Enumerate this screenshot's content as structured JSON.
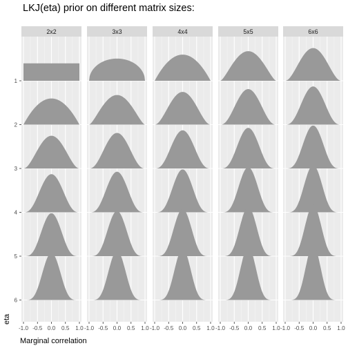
{
  "chart_data": {
    "type": "area",
    "title": "LKJ(eta) prior on different matrix sizes:",
    "xlabel": "Marginal correlation",
    "ylabel": "eta",
    "facet_columns": [
      "2x2",
      "3x3",
      "4x4",
      "5x5",
      "6x6"
    ],
    "eta_levels": [
      1,
      2,
      3,
      4,
      5,
      6
    ],
    "eta_tick_labels": [
      "1",
      "2",
      "3",
      "4",
      "5",
      "6"
    ],
    "x_ticks": [
      -1.0,
      -0.5,
      0.0,
      0.5,
      1.0
    ],
    "x_tick_labels": [
      "-1.0",
      "-0.5",
      "0.0",
      "0.5",
      "1.0"
    ],
    "xlim": [
      -1.0,
      1.0
    ],
    "ridge_scale": 1.0,
    "density": "marginal correlation ~ Beta(eta - 1 + d/2, eta - 1 + d/2) on [-1, 1]",
    "grid": true,
    "fill_color": "#999999",
    "panel_background": "#ebebeb",
    "strip_background": "#d9d9d9"
  }
}
